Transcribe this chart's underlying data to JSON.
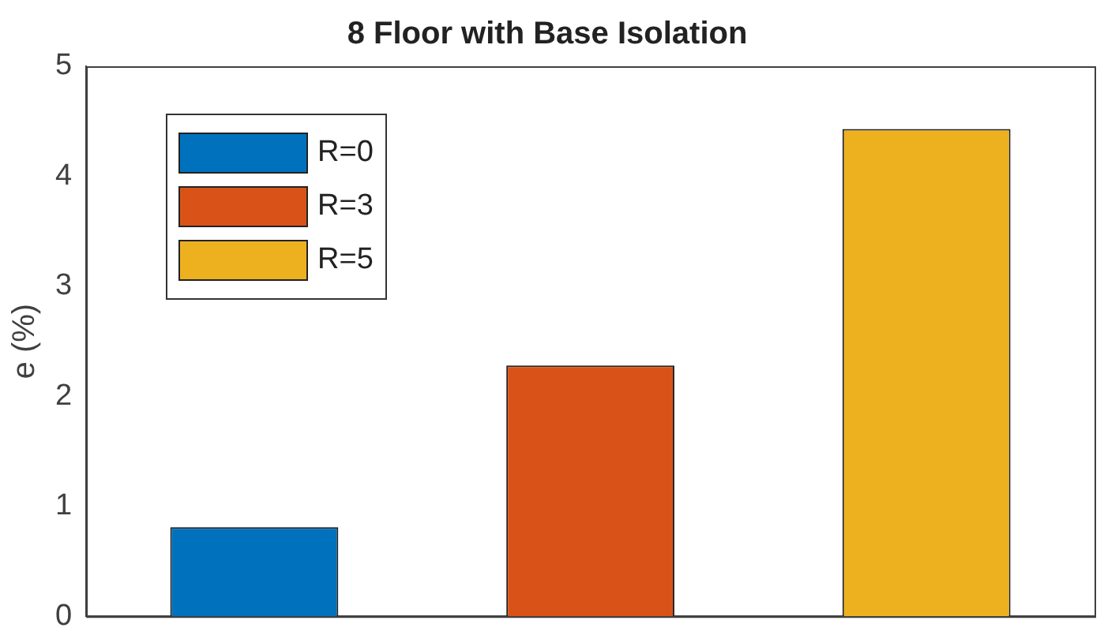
{
  "chart_data": {
    "type": "bar",
    "title": "8 Floor with Base Isolation",
    "ylabel": "e (%)",
    "categories": [
      null,
      null,
      null
    ],
    "series": [
      {
        "name": "R=0",
        "color": "#0072bd",
        "values": [
          0.81,
          null,
          null
        ]
      },
      {
        "name": "R=3",
        "color": "#d95319",
        "values": [
          null,
          2.28,
          null
        ]
      },
      {
        "name": "R=5",
        "color": "#edb120",
        "values": [
          null,
          null,
          4.43
        ]
      }
    ],
    "ylim": [
      0,
      5
    ],
    "yticks": [
      0,
      1,
      2,
      3,
      4,
      5
    ],
    "grid": false,
    "legend": "top left",
    "tick_labels": "y"
  }
}
